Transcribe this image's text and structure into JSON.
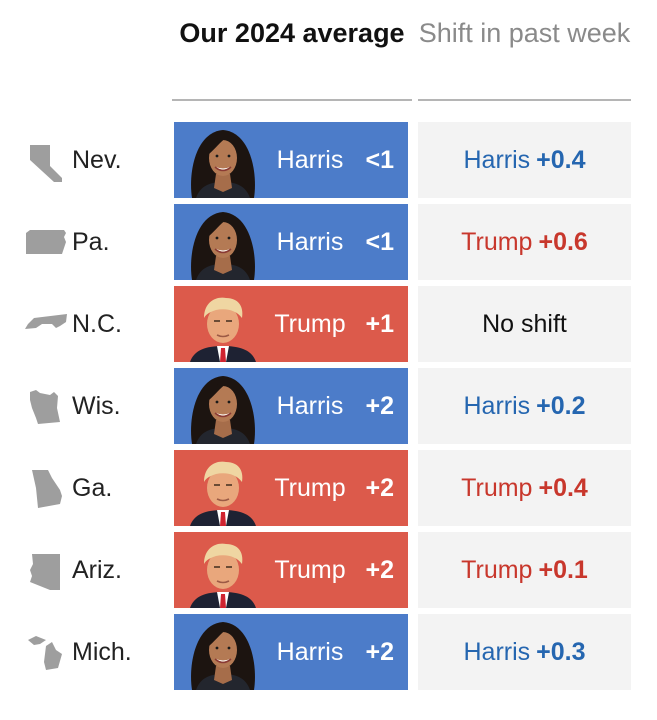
{
  "header": {
    "avg_title": "Our 2024 average",
    "shift_title": "Shift in past week"
  },
  "colors": {
    "harris_fill": "#4c7cc9",
    "trump_fill": "#dc5a4b",
    "harris_text": "#2566b0",
    "trump_text": "#c8372c",
    "state_gray": "#9e9e9e"
  },
  "chart_data": {
    "type": "table",
    "columns": [
      "",
      "Our 2024 average",
      "Shift in past week"
    ],
    "rows": [
      {
        "state": "Nev.",
        "state_icon": "nevada-icon",
        "leader": "Harris",
        "margin": "<1",
        "shift_candidate": "Harris",
        "shift_value": "+0.4"
      },
      {
        "state": "Pa.",
        "state_icon": "pennsylvania-icon",
        "leader": "Harris",
        "margin": "<1",
        "shift_candidate": "Trump",
        "shift_value": "+0.6"
      },
      {
        "state": "N.C.",
        "state_icon": "north-carolina-icon",
        "leader": "Trump",
        "margin": "+1",
        "shift_candidate": "",
        "shift_value": "No shift"
      },
      {
        "state": "Wis.",
        "state_icon": "wisconsin-icon",
        "leader": "Harris",
        "margin": "+2",
        "shift_candidate": "Harris",
        "shift_value": "+0.2"
      },
      {
        "state": "Ga.",
        "state_icon": "georgia-icon",
        "leader": "Trump",
        "margin": "+2",
        "shift_candidate": "Trump",
        "shift_value": "+0.4"
      },
      {
        "state": "Ariz.",
        "state_icon": "arizona-icon",
        "leader": "Trump",
        "margin": "+2",
        "shift_candidate": "Trump",
        "shift_value": "+0.1"
      },
      {
        "state": "Mich.",
        "state_icon": "michigan-icon",
        "leader": "Harris",
        "margin": "+2",
        "shift_candidate": "Harris",
        "shift_value": "+0.3"
      }
    ]
  }
}
